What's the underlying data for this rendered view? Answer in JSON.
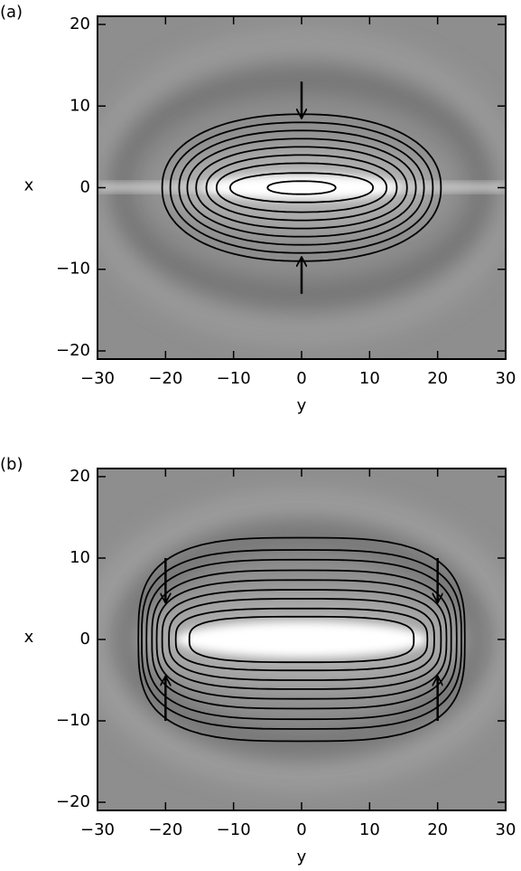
{
  "chart_data": [
    {
      "type": "contour",
      "panel_label": "(a)",
      "xlabel": "y",
      "ylabel": "x",
      "xlim": [
        -30,
        30
      ],
      "ylim": [
        -21,
        21
      ],
      "xticks": [
        {
          "value": -30,
          "label": "−30"
        },
        {
          "value": -20,
          "label": "−20"
        },
        {
          "value": -10,
          "label": "−10"
        },
        0,
        10,
        20,
        30
      ],
      "yticks": [
        {
          "value": -20,
          "label": "−20"
        },
        {
          "value": -10,
          "label": "−10"
        },
        0,
        10,
        20
      ],
      "contours": [
        {
          "y_half": 20.5,
          "x_half": 9
        },
        {
          "y_half": 19.3,
          "x_half": 8
        },
        {
          "y_half": 18,
          "x_half": 7
        },
        {
          "y_half": 16.8,
          "x_half": 6
        },
        {
          "y_half": 15.5,
          "x_half": 5
        },
        {
          "y_half": 14,
          "x_half": 4
        },
        {
          "y_half": 12.5,
          "x_half": 3
        },
        {
          "y_half": 10.5,
          "x_half": 1.8
        },
        {
          "y_half": 5,
          "x_half": 0.8
        }
      ],
      "arrows": [
        {
          "y": 0,
          "x_from": 13,
          "x_to": 8.5
        },
        {
          "y": 0,
          "x_from": -13,
          "x_to": -8.5
        }
      ]
    },
    {
      "type": "contour",
      "panel_label": "(b)",
      "xlabel": "y",
      "ylabel": "x",
      "xlim": [
        -30,
        30
      ],
      "ylim": [
        -21,
        21
      ],
      "xticks": [
        {
          "value": -30,
          "label": "−30"
        },
        {
          "value": -20,
          "label": "−20"
        },
        {
          "value": -10,
          "label": "−10"
        },
        0,
        10,
        20,
        30
      ],
      "yticks": [
        {
          "value": -20,
          "label": "−20"
        },
        {
          "value": -10,
          "label": "−10"
        },
        0,
        10,
        20
      ],
      "contours": [
        {
          "y_half": 24,
          "x_half": 12.5
        },
        {
          "y_half": 23.5,
          "x_half": 11
        },
        {
          "y_half": 22.8,
          "x_half": 9.8
        },
        {
          "y_half": 22,
          "x_half": 8.5
        },
        {
          "y_half": 21.3,
          "x_half": 7.3
        },
        {
          "y_half": 20.5,
          "x_half": 6.1
        },
        {
          "y_half": 19.5,
          "x_half": 5
        },
        {
          "y_half": 18.5,
          "x_half": 3.8
        },
        {
          "y_half": 16.5,
          "x_half": 2.8
        }
      ],
      "arrows": [
        {
          "y": -20,
          "x_from": 10,
          "x_to": 4.5
        },
        {
          "y": 20,
          "x_from": 10,
          "x_to": 4.5
        },
        {
          "y": -20,
          "x_from": -10,
          "x_to": -4.5
        },
        {
          "y": 20,
          "x_from": -10,
          "x_to": -4.5
        }
      ]
    }
  ]
}
